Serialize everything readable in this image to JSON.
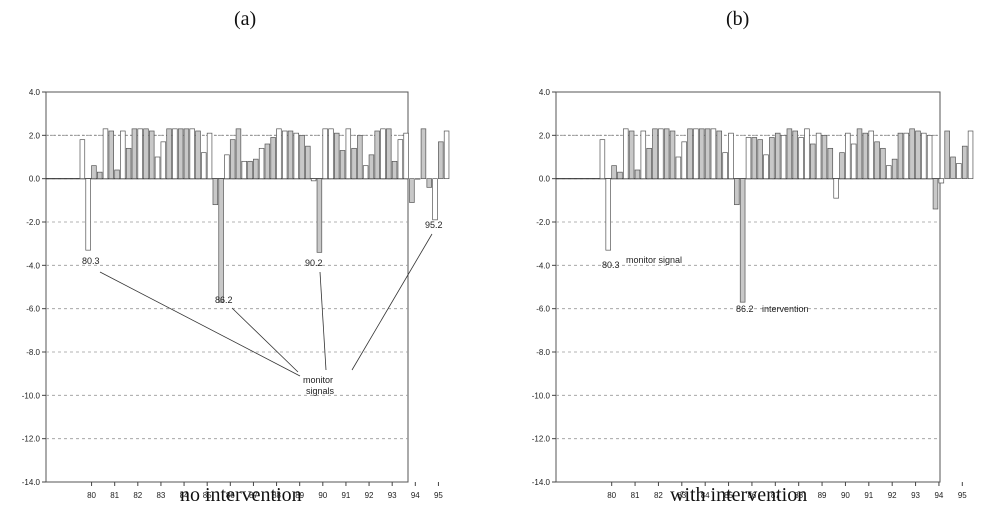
{
  "figure": {
    "panel_a_letter": "(a)",
    "panel_b_letter": "(b)",
    "caption_a": "no intervention",
    "caption_b": "with intervention"
  },
  "chart_data": [
    {
      "type": "bar",
      "panel": "(a)",
      "caption": "no intervention",
      "ylim": [
        -14,
        4
      ],
      "yticks": [
        "4.0",
        "2.0",
        "0.0",
        "-2.0",
        "-4.0",
        "-6.0",
        "-8.0",
        "-10.0",
        "-12.0",
        "-14.0"
      ],
      "xticks": [
        "80",
        "81",
        "82",
        "83",
        "84",
        "85",
        "86",
        "87",
        "88",
        "89",
        "90",
        "91",
        "92",
        "93",
        "94",
        "95"
      ],
      "reference_line": 2.0,
      "grid": true,
      "values": [
        1.8,
        -3.3,
        0.6,
        0.3,
        2.3,
        2.2,
        0.4,
        2.2,
        1.4,
        2.3,
        2.3,
        2.3,
        2.2,
        1.0,
        1.7,
        2.3,
        2.3,
        2.3,
        2.3,
        2.3,
        2.2,
        1.2,
        2.1,
        -1.2,
        -5.7,
        1.1,
        1.8,
        2.3,
        0.8,
        0.8,
        0.9,
        1.4,
        1.6,
        1.9,
        2.3,
        2.2,
        2.2,
        2.1,
        2.0,
        1.5,
        -0.1,
        -3.4,
        2.3,
        2.3,
        2.1,
        1.3,
        2.3,
        1.4,
        2.0,
        0.6,
        1.1,
        2.2,
        2.3,
        2.3,
        0.8,
        1.8,
        2.1,
        -1.1,
        0.0,
        2.3,
        -0.4,
        -1.9,
        1.7,
        2.2
      ],
      "annotations": [
        {
          "text": "80.3",
          "index": 1
        },
        {
          "text": "86.2",
          "index": 24
        },
        {
          "text": "90.2",
          "index": 41
        },
        {
          "text": "95.2",
          "index": 61
        }
      ],
      "callout": [
        "monitor",
        "signals"
      ]
    },
    {
      "type": "bar",
      "panel": "(b)",
      "caption": "with intervention",
      "ylim": [
        -14,
        4
      ],
      "yticks": [
        "4.0",
        "2.0",
        "0.0",
        "-2.0",
        "-4.0",
        "-6.0",
        "-8.0",
        "-10.0",
        "-12.0",
        "-14.0"
      ],
      "xticks": [
        "80",
        "81",
        "82",
        "83",
        "84",
        "85",
        "86",
        "87",
        "88",
        "89",
        "90",
        "91",
        "92",
        "93",
        "94",
        "95"
      ],
      "reference_line": 2.0,
      "grid": true,
      "values": [
        1.8,
        -3.3,
        0.6,
        0.3,
        2.3,
        2.2,
        0.4,
        2.2,
        1.4,
        2.3,
        2.3,
        2.3,
        2.2,
        1.0,
        1.7,
        2.3,
        2.3,
        2.3,
        2.3,
        2.3,
        2.2,
        1.2,
        2.1,
        -1.2,
        -5.7,
        1.9,
        1.9,
        1.8,
        1.1,
        1.9,
        2.1,
        2.0,
        2.3,
        2.2,
        1.9,
        2.3,
        1.6,
        2.1,
        2.0,
        1.4,
        -0.9,
        1.2,
        2.1,
        1.6,
        2.3,
        2.1,
        2.2,
        1.7,
        1.4,
        0.6,
        0.9,
        2.1,
        2.1,
        2.3,
        2.2,
        2.1,
        2.0,
        -1.4,
        -0.2,
        2.2,
        1.0,
        0.7,
        1.5,
        2.2
      ],
      "annotations": [
        {
          "text": "80.3",
          "index": 1,
          "note": "monitor signal"
        },
        {
          "text": "86.2",
          "index": 24,
          "note": "intervention"
        }
      ]
    }
  ]
}
